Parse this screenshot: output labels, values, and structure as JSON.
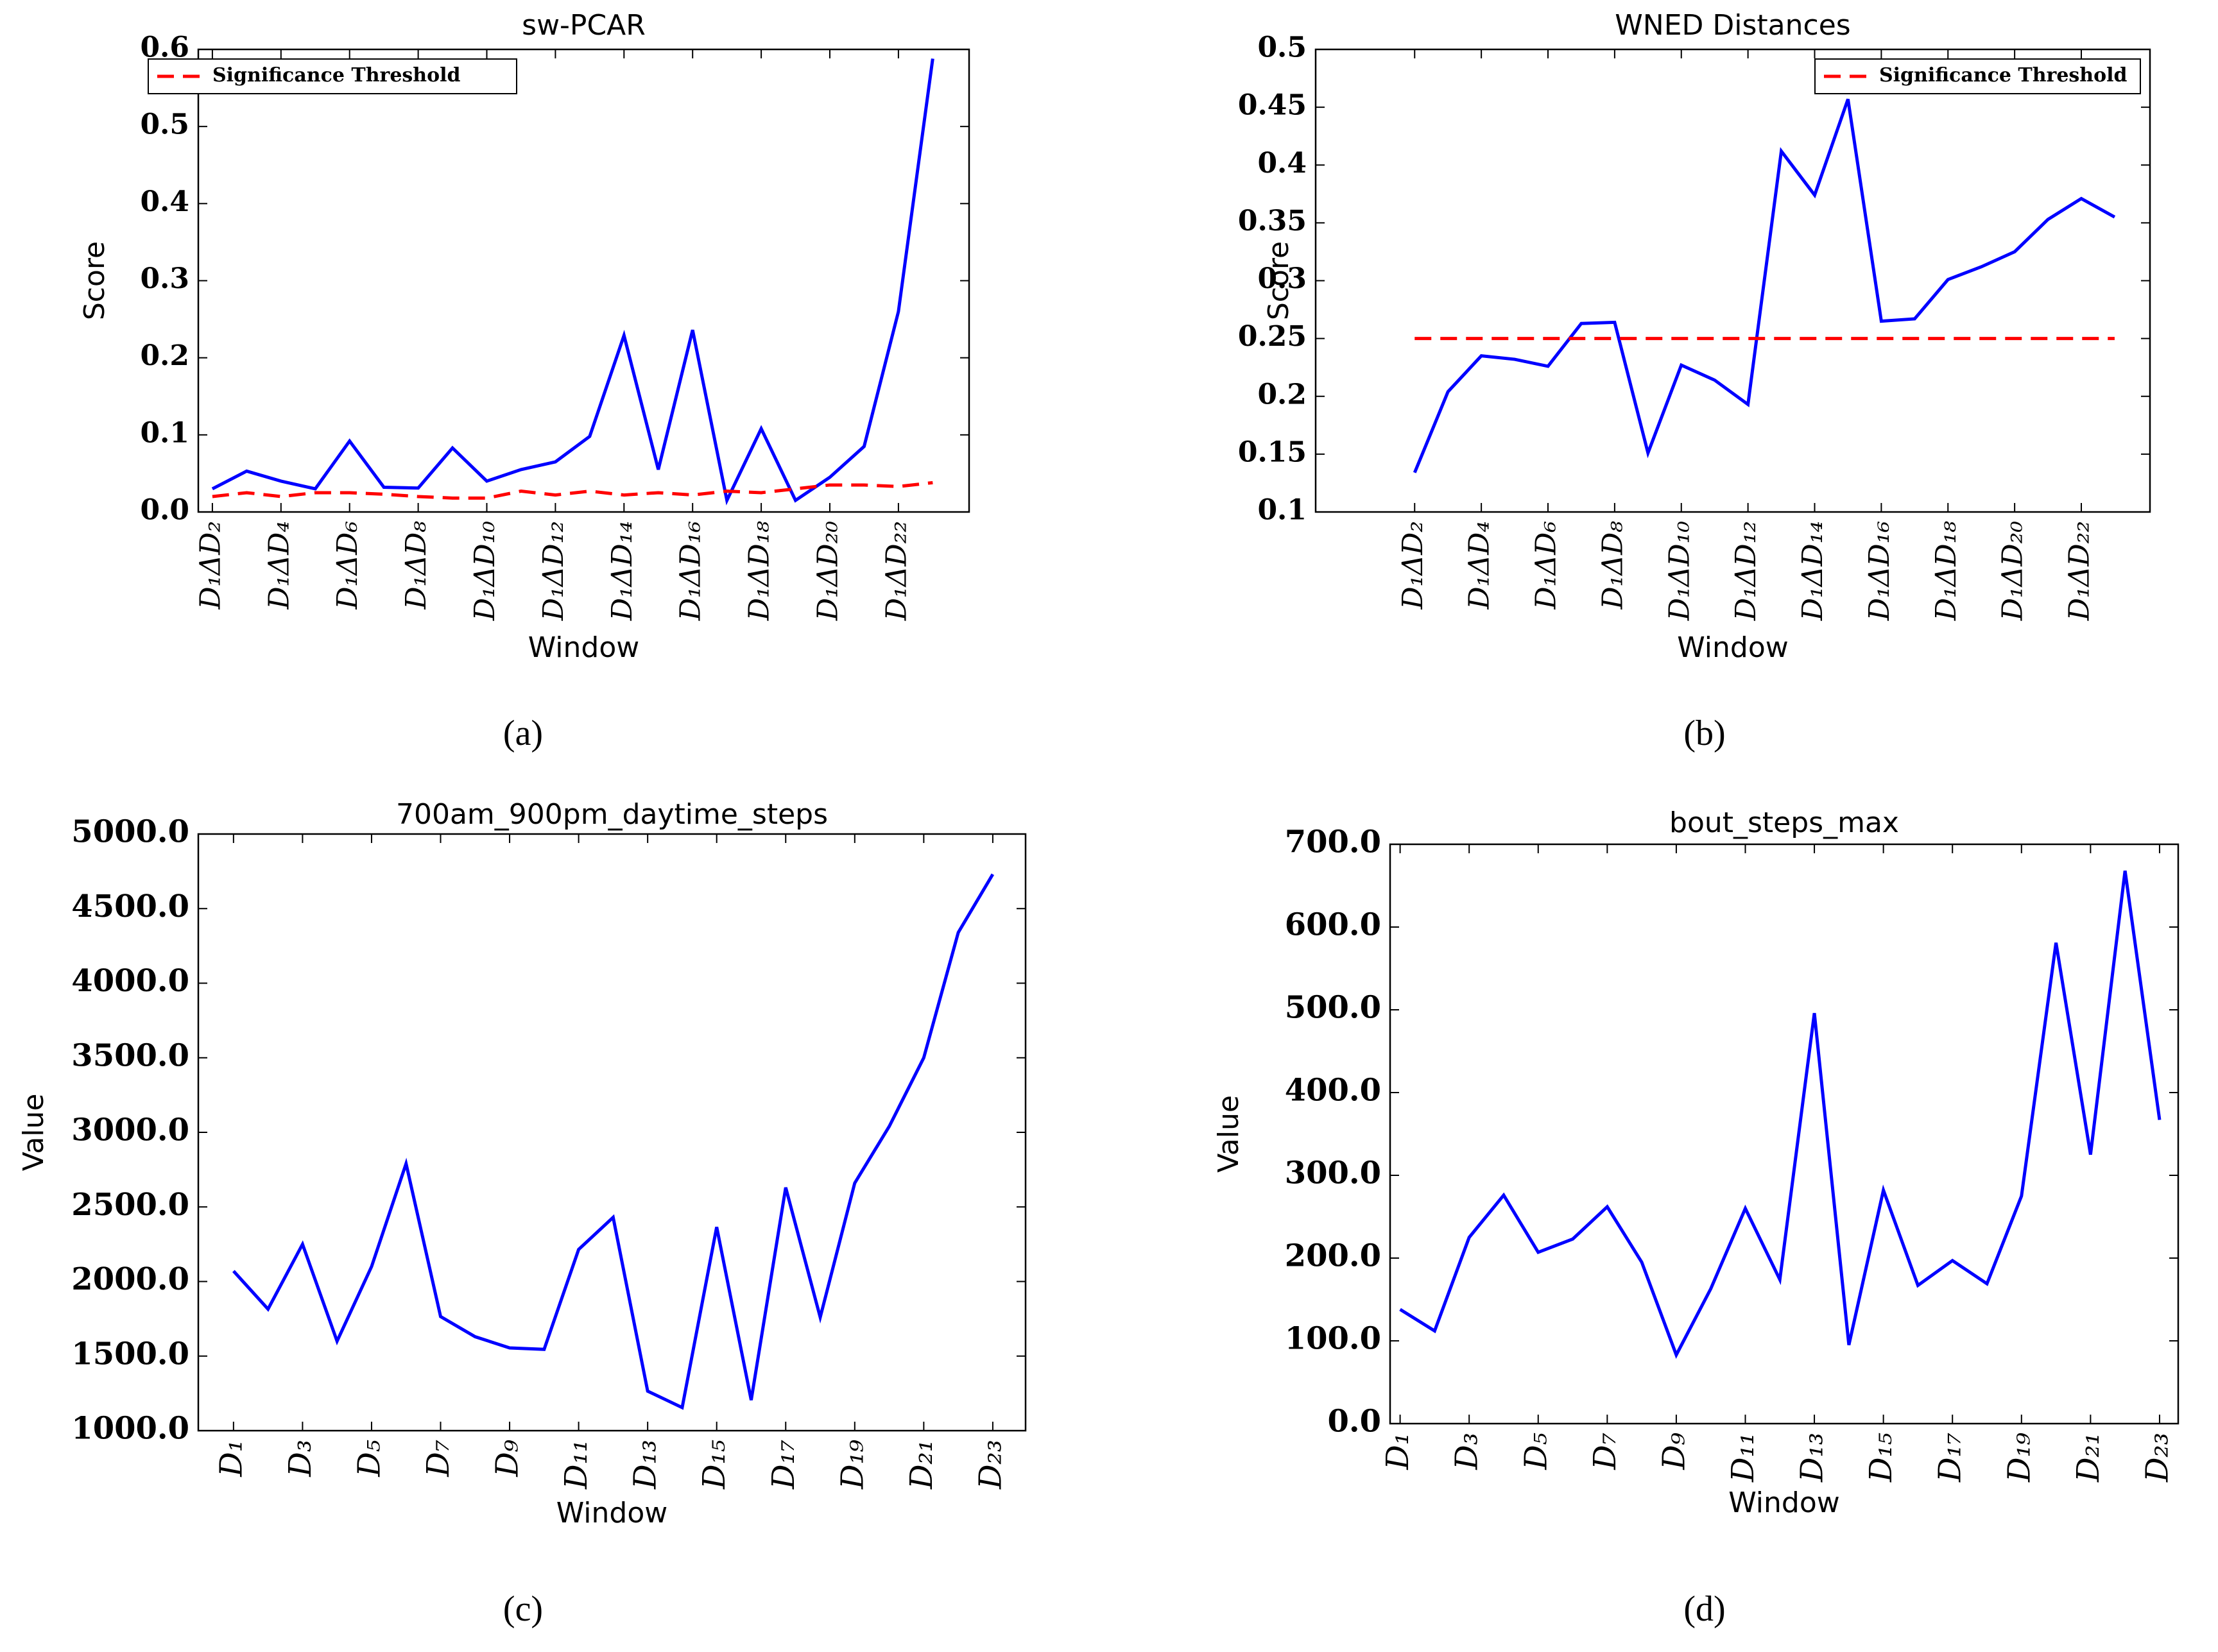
{
  "chart_data": [
    {
      "type": "line",
      "title": "sw-PCAR",
      "x_label": "Window",
      "y_label": "Score",
      "caption": "(a)",
      "categories": [
        "D₁ΔD₂",
        null,
        "D₁ΔD₄",
        null,
        "D₁ΔD₆",
        null,
        "D₁ΔD₈",
        null,
        "D₁ΔD₁₀",
        null,
        "D₁ΔD₁₂",
        null,
        "D₁ΔD₁₄",
        null,
        "D₁ΔD₁₆",
        null,
        "D₁ΔD₁₈",
        null,
        "D₁ΔD₂₀",
        null,
        "D₁ΔD₂₂",
        null
      ],
      "series": [
        {
          "color": "#0000ff",
          "values": [
            0.03,
            0.053,
            0.04,
            0.03,
            0.092,
            0.032,
            0.031,
            0.083,
            0.04,
            0.055,
            0.065,
            0.098,
            0.229,
            0.055,
            0.236,
            0.015,
            0.108,
            0.015,
            0.045,
            0.085,
            0.26,
            0.588
          ]
        },
        {
          "name": "Significance Threshold",
          "color": "#ff0000",
          "dashed": true,
          "values": [
            0.02,
            0.025,
            0.02,
            0.025,
            0.025,
            0.023,
            0.02,
            0.018,
            0.018,
            0.027,
            0.022,
            0.027,
            0.022,
            0.025,
            0.022,
            0.027,
            0.025,
            0.03,
            0.035,
            0.035,
            0.033,
            0.038
          ]
        }
      ],
      "ylim": [
        0,
        0.6
      ],
      "yticks": [
        {
          "value": 0,
          "label": "0.0"
        },
        0.1,
        0.2,
        0.3,
        0.4,
        0.5,
        0.6
      ],
      "legend": "upper left"
    },
    {
      "type": "line",
      "title": "WNED Distances",
      "x_label": "Window",
      "y_label": "Score",
      "caption": "(b)",
      "categories": [
        "D₁ΔD₂",
        null,
        "D₁ΔD₄",
        null,
        "D₁ΔD₆",
        null,
        "D₁ΔD₈",
        null,
        "D₁ΔD₁₀",
        null,
        "D₁ΔD₁₂",
        null,
        "D₁ΔD₁₄",
        null,
        "D₁ΔD₁₆",
        null,
        "D₁ΔD₁₈",
        null,
        "D₁ΔD₂₀",
        null,
        "D₁ΔD₂₂",
        null
      ],
      "series": [
        {
          "color": "#0000ff",
          "values": [
            0.134,
            0.204,
            0.235,
            0.232,
            0.226,
            0.263,
            0.264,
            0.151,
            0.227,
            0.214,
            0.193,
            0.412,
            0.374,
            0.457,
            0.265,
            0.267,
            0.301,
            0.312,
            0.325,
            0.353,
            0.371,
            0.355
          ]
        },
        {
          "name": "Significance Threshold",
          "color": "#ff0000",
          "dashed": true,
          "values": [
            0.25,
            0.25,
            0.25,
            0.25,
            0.25,
            0.25,
            0.25,
            0.25,
            0.25,
            0.25,
            0.25,
            0.25,
            0.25,
            0.25,
            0.25,
            0.25,
            0.25,
            0.25,
            0.25,
            0.25,
            0.25,
            0.25
          ]
        }
      ],
      "ylim": [
        0.1,
        0.5
      ],
      "yticks": [
        0.1,
        0.15,
        0.2,
        0.25,
        0.3,
        0.35,
        0.4,
        0.45,
        0.5
      ],
      "legend": "upper right"
    },
    {
      "type": "line",
      "title": "700am_900pm_daytime_steps",
      "x_label": "Window",
      "y_label": "Value",
      "caption": "(c)",
      "categories": [
        "D₁",
        null,
        "D₃",
        null,
        "D₅",
        null,
        "D₇",
        null,
        "D₉",
        null,
        "D₁₁",
        null,
        "D₁₃",
        null,
        "D₁₅",
        null,
        "D₁₇",
        null,
        "D₁₉",
        null,
        "D₂₁",
        null,
        "D₂₃"
      ],
      "series": [
        {
          "color": "#0000ff",
          "values": [
            2070,
            1815,
            2250,
            1600,
            2100,
            2790,
            1765,
            1630,
            1555,
            1545,
            2215,
            2430,
            1265,
            1155,
            2365,
            1205,
            2630,
            1760,
            2660,
            3040,
            3500,
            4340,
            4730
          ]
        }
      ],
      "ylim": [
        1000,
        5000
      ],
      "yticks": [
        {
          "value": 1000,
          "label": "1000.0"
        },
        {
          "value": 1500,
          "label": "1500.0"
        },
        {
          "value": 2000,
          "label": "2000.0"
        },
        {
          "value": 2500,
          "label": "2500.0"
        },
        {
          "value": 3000,
          "label": "3000.0"
        },
        {
          "value": 3500,
          "label": "3500.0"
        },
        {
          "value": 4000,
          "label": "4000.0"
        },
        {
          "value": 4500,
          "label": "4500.0"
        },
        {
          "value": 5000,
          "label": "5000.0"
        }
      ]
    },
    {
      "type": "line",
      "title": "bout_steps_max",
      "x_label": "Window",
      "y_label": "Value",
      "caption": "(d)",
      "categories": [
        "D₁",
        null,
        "D₃",
        null,
        "D₅",
        null,
        "D₇",
        null,
        "D₉",
        null,
        "D₁₁",
        null,
        "D₁₃",
        null,
        "D₁₅",
        null,
        "D₁₇",
        null,
        "D₁₉",
        null,
        "D₂₁",
        null,
        "D₂₃"
      ],
      "series": [
        {
          "color": "#0000ff",
          "values": [
            138,
            112,
            225,
            276,
            207,
            223,
            262,
            195,
            83,
            163,
            260,
            174,
            496,
            95,
            282,
            167,
            197,
            169,
            275,
            581,
            325,
            668,
            367
          ]
        }
      ],
      "ylim": [
        0,
        700
      ],
      "yticks": [
        {
          "value": 0,
          "label": "0.0"
        },
        {
          "value": 100,
          "label": "100.0"
        },
        {
          "value": 200,
          "label": "200.0"
        },
        {
          "value": 300,
          "label": "300.0"
        },
        {
          "value": 400,
          "label": "400.0"
        },
        {
          "value": 500,
          "label": "500.0"
        },
        {
          "value": 600,
          "label": "600.0"
        },
        {
          "value": 700,
          "label": "700.0"
        }
      ]
    }
  ]
}
